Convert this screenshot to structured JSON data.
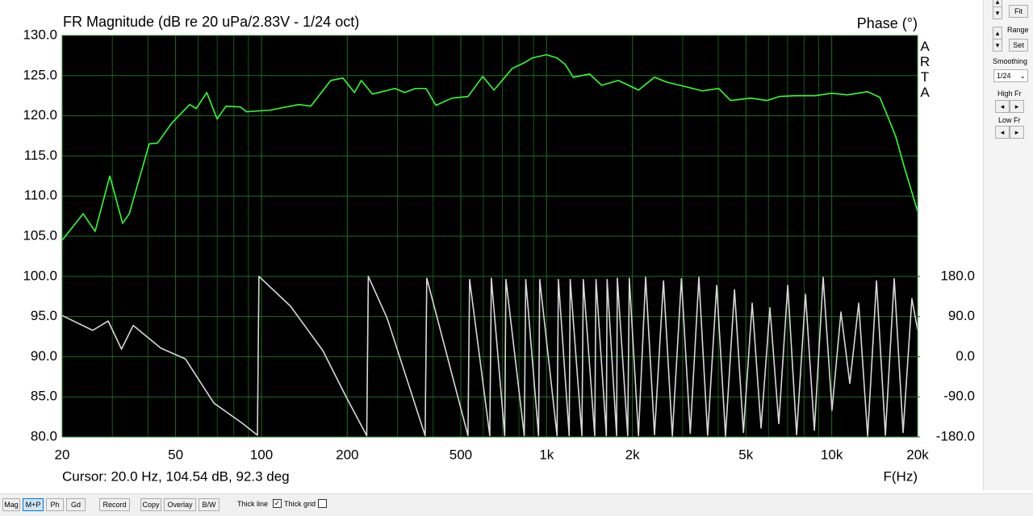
{
  "chart_data": {
    "type": "line",
    "title": "FR Magnitude (dB re 20 uPa/2.83V - 1/24 oct)",
    "y2label": "Phase (°)",
    "watermark": "ARTA",
    "cursor": "Cursor: 20.0 Hz, 104.54 dB, 92.3 deg",
    "xlabel": "F(Hz)",
    "xscale": "log",
    "xlim": [
      20,
      20000
    ],
    "ylim": [
      80,
      130
    ],
    "y2lim": [
      -180,
      720
    ],
    "grid": true,
    "xticks": [
      20,
      50,
      100,
      200,
      500,
      {
        "value": 1000,
        "label": "1k"
      },
      {
        "value": 2000,
        "label": "2k"
      },
      {
        "value": 5000,
        "label": "5k"
      },
      {
        "value": 10000,
        "label": "10k"
      },
      {
        "value": 20000,
        "label": "20k"
      }
    ],
    "xminor": [
      30,
      40,
      60,
      70,
      80,
      90,
      300,
      400,
      600,
      700,
      800,
      900,
      3000,
      4000,
      6000,
      7000,
      8000,
      9000
    ],
    "yticks": [
      {
        "value": 80,
        "label": "80.0"
      },
      {
        "value": 85,
        "label": "85.0"
      },
      {
        "value": 90,
        "label": "90.0"
      },
      {
        "value": 95,
        "label": "95.0"
      },
      {
        "value": 100,
        "label": "100.0"
      },
      {
        "value": 105,
        "label": "105.0"
      },
      {
        "value": 110,
        "label": "110.0"
      },
      {
        "value": 115,
        "label": "115.0"
      },
      {
        "value": 120,
        "label": "120.0"
      },
      {
        "value": 125,
        "label": "125.0"
      },
      {
        "value": 130,
        "label": "130.0"
      }
    ],
    "y2ticks": [
      {
        "value": -180,
        "label": "-180.0"
      },
      {
        "value": -90,
        "label": "-90.0"
      },
      {
        "value": 0,
        "label": "0.0"
      },
      {
        "value": 90,
        "label": "90.0"
      },
      {
        "value": 180,
        "label": "180.0"
      }
    ],
    "series": [
      {
        "color": "#33ff33",
        "x": [
          20,
          23.7,
          26.1,
          29.4,
          32.6,
          34.4,
          40.4,
          43.2,
          48.5,
          56,
          59.1,
          64.3,
          69.9,
          75.1,
          84.4,
          88.5,
          107,
          135,
          149,
          175,
          193,
          212,
          224,
          245,
          294,
          318,
          346,
          378,
          409,
          466,
          530,
          597,
          654,
          758,
          835,
          890,
          1000,
          1088,
          1162,
          1240,
          1414,
          1560,
          1786,
          2100,
          2390,
          2630,
          3090,
          3520,
          4010,
          4420,
          5200,
          5930,
          6540,
          7450,
          8760,
          10000,
          11360,
          13360,
          14740,
          15720,
          16770,
          17900,
          20000
        ],
        "values": [
          104.5,
          107.8,
          105.6,
          112.5,
          106.6,
          107.8,
          116.5,
          116.6,
          119.1,
          121.4,
          120.9,
          122.9,
          119.6,
          121.2,
          121.1,
          120.5,
          120.7,
          121.4,
          121.2,
          124.4,
          124.7,
          122.9,
          124.4,
          122.7,
          123.4,
          122.9,
          123.4,
          123.4,
          121.3,
          122.2,
          122.4,
          124.9,
          123.2,
          125.9,
          126.6,
          127.2,
          127.6,
          127.2,
          126.4,
          124.8,
          125.2,
          123.8,
          124.4,
          123.2,
          124.8,
          124.2,
          123.6,
          123.1,
          123.4,
          121.9,
          122.2,
          121.9,
          122.4,
          122.5,
          122.5,
          122.8,
          122.6,
          123,
          122.3,
          119.9,
          117.4,
          113.8,
          108.1
        ]
      },
      {
        "color": "#d8d8d8",
        "axis": "y2",
        "x": [
          20,
          25.6,
          29,
          32.3,
          35.5,
          44.4,
          54.1,
          68.1,
          85.6,
          96.8,
          98,
          126.5,
          164,
          200,
          234,
          237,
          276,
          375,
          380,
          530,
          537,
          632,
          640,
          713,
          720,
          835,
          845,
          937,
          946,
          1088,
          1100,
          1200,
          1210,
          1330,
          1345,
          1475,
          1490,
          1620,
          1630,
          1760,
          1770,
          1925,
          1950,
          2100,
          2225,
          2390,
          2570,
          2760,
          2970,
          3190,
          3420,
          3670,
          3950,
          4240,
          4560,
          4900,
          5260,
          5650,
          6070,
          6520,
          7010,
          7530,
          8090,
          8690,
          9330,
          10020,
          10770,
          11570,
          12430,
          13360,
          14350,
          15420,
          16560,
          17790,
          19100,
          20000
        ],
        "values": [
          92.3,
          59,
          80,
          17,
          70,
          19,
          -5,
          -104,
          -149,
          -176,
          180,
          113,
          14,
          -95,
          -177,
          180,
          86,
          -177,
          176,
          -177,
          173,
          -177,
          176,
          -177,
          173,
          -177,
          173,
          -177,
          173,
          -177,
          173,
          -177,
          173,
          -177,
          173,
          -177,
          173,
          -177,
          173,
          -177,
          176,
          -177,
          176,
          -177,
          178,
          -175,
          170,
          -178,
          175,
          -172,
          178,
          -176,
          160,
          -178,
          150,
          -170,
          120,
          -160,
          110,
          -150,
          160,
          -175,
          140,
          -165,
          178,
          -120,
          100,
          -60,
          120,
          -178,
          170,
          -176,
          175,
          -170,
          130,
          60
        ]
      }
    ]
  },
  "ui": {
    "fit": "Fit",
    "range": "Range",
    "set": "Set",
    "smoothing": "Smoothing",
    "smoothing_value": "1/24",
    "high_fr": "High Fr",
    "low_fr": "Low Fr",
    "toolbar": [
      "Mag",
      "M+P",
      "Ph",
      "Gd",
      "Record",
      "Copy",
      "Overlay",
      "B/W"
    ],
    "active_button": 1,
    "thick_line": "Thick line",
    "thick_line_checked": true,
    "thick_grid": "Thick grid",
    "thick_grid_checked": false
  }
}
